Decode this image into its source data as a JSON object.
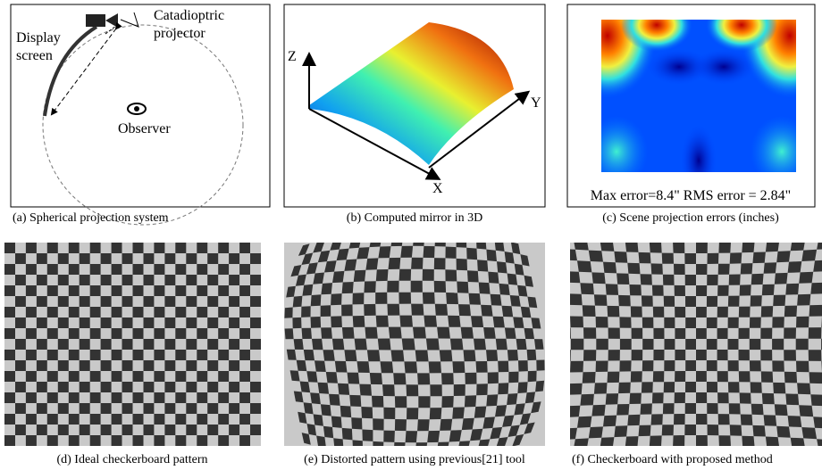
{
  "panels": [
    {
      "caption": "(a) Spherical projection system",
      "labels": [
        "Display",
        "screen",
        "Catadioptric",
        "projector",
        "Observer"
      ]
    },
    {
      "caption": "(b) Computed mirror in 3D",
      "labels": [
        "Z",
        "Y",
        "X"
      ]
    },
    {
      "caption": "(c) Scene projection errors (inches)",
      "labels": [
        "Max  error=8.4\"  RMS error = 2.84\""
      ]
    },
    {
      "caption": "(d) Ideal checkerboard pattern"
    },
    {
      "caption": "(e) Distorted pattern using previous[21] tool"
    },
    {
      "caption": "(f) Checkerboard with proposed method"
    }
  ]
}
